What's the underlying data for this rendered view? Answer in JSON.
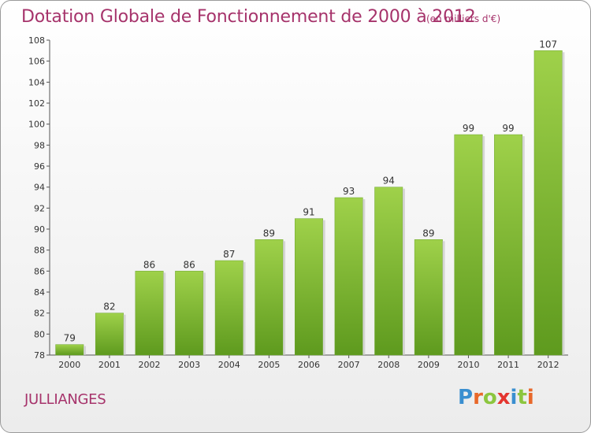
{
  "header": {
    "title": "Dotation Globale de Fonctionnement de 2000 à 2012",
    "subtitle": "(en milliers d'€)"
  },
  "footer": {
    "town": "JULLIANGES",
    "logo": {
      "letters": [
        "P",
        "r",
        "o",
        "x",
        "i",
        "t",
        "i"
      ],
      "colors": [
        "#3a8fd0",
        "#e8682a",
        "#8cc63f",
        "#e4352f",
        "#3a8fd0",
        "#8cc63f",
        "#e8682a"
      ]
    }
  },
  "chart_data": {
    "type": "bar",
    "title": "Dotation Globale de Fonctionnement de 2000 à 2012",
    "subtitle": "(en milliers d'€)",
    "categories": [
      "2000",
      "2001",
      "2002",
      "2003",
      "2004",
      "2005",
      "2006",
      "2007",
      "2008",
      "2009",
      "2010",
      "2011",
      "2012"
    ],
    "values": [
      79,
      82,
      86,
      86,
      87,
      89,
      91,
      93,
      94,
      89,
      99,
      99,
      107
    ],
    "ylim": [
      78,
      108
    ],
    "yticks": [
      78,
      80,
      82,
      84,
      86,
      88,
      90,
      92,
      94,
      96,
      98,
      100,
      102,
      104,
      106,
      108
    ],
    "grid": false,
    "legend": "none",
    "bar_color": "#7ab833"
  }
}
